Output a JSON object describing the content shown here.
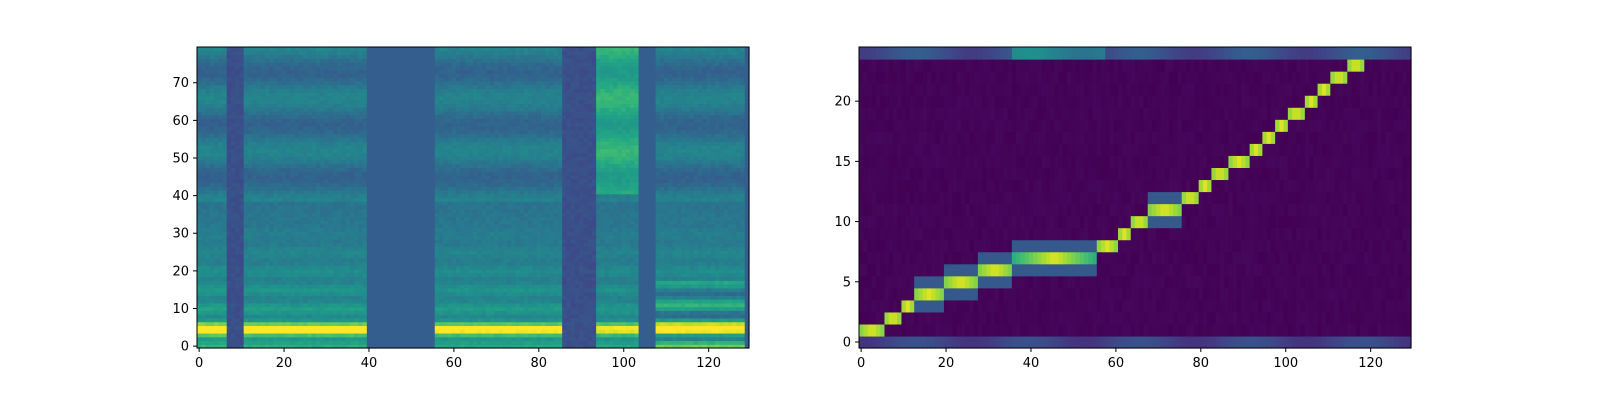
{
  "chart_data": [
    {
      "type": "heatmap",
      "name": "mel-spectrogram",
      "title": "",
      "xlabel": "",
      "ylabel": "",
      "xlim": [
        -0.5,
        129.5
      ],
      "ylim": [
        -0.5,
        79.5
      ],
      "origin": "lower",
      "colormap": "viridis",
      "xticks": [
        0,
        20,
        40,
        60,
        80,
        100,
        120
      ],
      "yticks": [
        0,
        10,
        20,
        30,
        40,
        50,
        60,
        70
      ],
      "frames": 130,
      "bins": 80,
      "voiced_segments": [
        {
          "start": 0,
          "end": 7,
          "energy": 0.95
        },
        {
          "start": 11,
          "end": 40,
          "energy": 0.85
        },
        {
          "start": 56,
          "end": 86,
          "energy": 0.8
        },
        {
          "start": 94,
          "end": 104,
          "energy": 0.75
        },
        {
          "start": 108,
          "end": 129,
          "energy": 0.85
        }
      ],
      "silent_segments": [
        {
          "start": 7,
          "end": 11
        },
        {
          "start": 86,
          "end": 94
        }
      ]
    },
    {
      "type": "heatmap",
      "name": "alignment",
      "title": "",
      "xlabel": "",
      "ylabel": "",
      "xlim": [
        -0.5,
        129.5
      ],
      "ylim": [
        -0.5,
        24.5
      ],
      "origin": "lower",
      "colormap": "viridis",
      "xticks": [
        0,
        20,
        40,
        60,
        80,
        100,
        120
      ],
      "yticks": [
        0,
        5,
        10,
        15,
        20
      ],
      "frames": 130,
      "tokens": 25,
      "alignment_path": [
        {
          "token": 1,
          "start": 0,
          "end": 6
        },
        {
          "token": 2,
          "start": 6,
          "end": 10
        },
        {
          "token": 3,
          "start": 10,
          "end": 13
        },
        {
          "token": 4,
          "start": 13,
          "end": 20
        },
        {
          "token": 5,
          "start": 20,
          "end": 28
        },
        {
          "token": 6,
          "start": 28,
          "end": 36
        },
        {
          "token": 7,
          "start": 36,
          "end": 56
        },
        {
          "token": 8,
          "start": 56,
          "end": 61
        },
        {
          "token": 9,
          "start": 61,
          "end": 64
        },
        {
          "token": 10,
          "start": 64,
          "end": 68
        },
        {
          "token": 11,
          "start": 68,
          "end": 76
        },
        {
          "token": 12,
          "start": 76,
          "end": 80
        },
        {
          "token": 13,
          "start": 80,
          "end": 83
        },
        {
          "token": 14,
          "start": 83,
          "end": 87
        },
        {
          "token": 15,
          "start": 87,
          "end": 92
        },
        {
          "token": 16,
          "start": 92,
          "end": 95
        },
        {
          "token": 17,
          "start": 95,
          "end": 98
        },
        {
          "token": 18,
          "start": 98,
          "end": 101
        },
        {
          "token": 19,
          "start": 101,
          "end": 105
        },
        {
          "token": 20,
          "start": 105,
          "end": 108
        },
        {
          "token": 21,
          "start": 108,
          "end": 111
        },
        {
          "token": 22,
          "start": 111,
          "end": 115
        },
        {
          "token": 23,
          "start": 115,
          "end": 119
        }
      ],
      "edge_rows": [
        {
          "token": 0,
          "start": 0,
          "end": 130,
          "level": 0.25
        },
        {
          "token": 24,
          "start": 0,
          "end": 130,
          "level": 0.3
        }
      ]
    }
  ]
}
